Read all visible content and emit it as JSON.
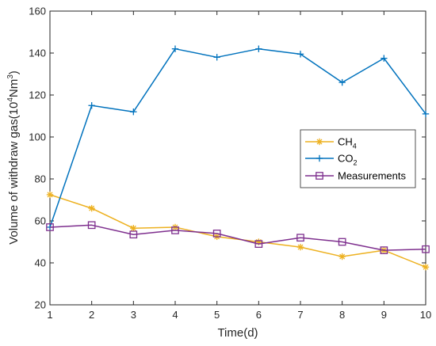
{
  "chart_data": {
    "type": "line",
    "title": "",
    "xlabel": "Time(d)",
    "ylabel": {
      "prefix": "Volume of withdraw gas(10",
      "sup1": "4",
      "mid": "Nm",
      "sup2": "3",
      "suffix": ")"
    },
    "x": [
      1,
      2,
      3,
      4,
      5,
      6,
      7,
      8,
      9,
      10
    ],
    "xlim": [
      1,
      10
    ],
    "ylim": [
      20,
      160
    ],
    "xticks": [
      "1",
      "2",
      "3",
      "4",
      "5",
      "6",
      "7",
      "8",
      "9",
      "10"
    ],
    "yticks": [
      "20",
      "40",
      "60",
      "80",
      "100",
      "120",
      "140",
      "160"
    ],
    "grid": false,
    "legend_position": "right",
    "series": [
      {
        "name": "CH4",
        "label_base": "CH",
        "label_sub": "4",
        "marker": "asterisk",
        "color": "#EDB120",
        "values": [
          72.5,
          66,
          56.5,
          57,
          52.5,
          50,
          47.5,
          43,
          46,
          38
        ]
      },
      {
        "name": "CO2",
        "label_base": "CO",
        "label_sub": "2",
        "marker": "plus",
        "color": "#0072BD",
        "values": [
          57,
          115,
          112,
          142,
          138,
          142,
          139.5,
          126,
          137.5,
          111
        ]
      },
      {
        "name": "Measurements",
        "label_base": "Measurements",
        "label_sub": "",
        "marker": "square",
        "color": "#7E2F8E",
        "values": [
          57,
          58,
          53.5,
          55.5,
          54,
          49,
          52,
          50,
          46,
          46.5
        ]
      }
    ]
  }
}
